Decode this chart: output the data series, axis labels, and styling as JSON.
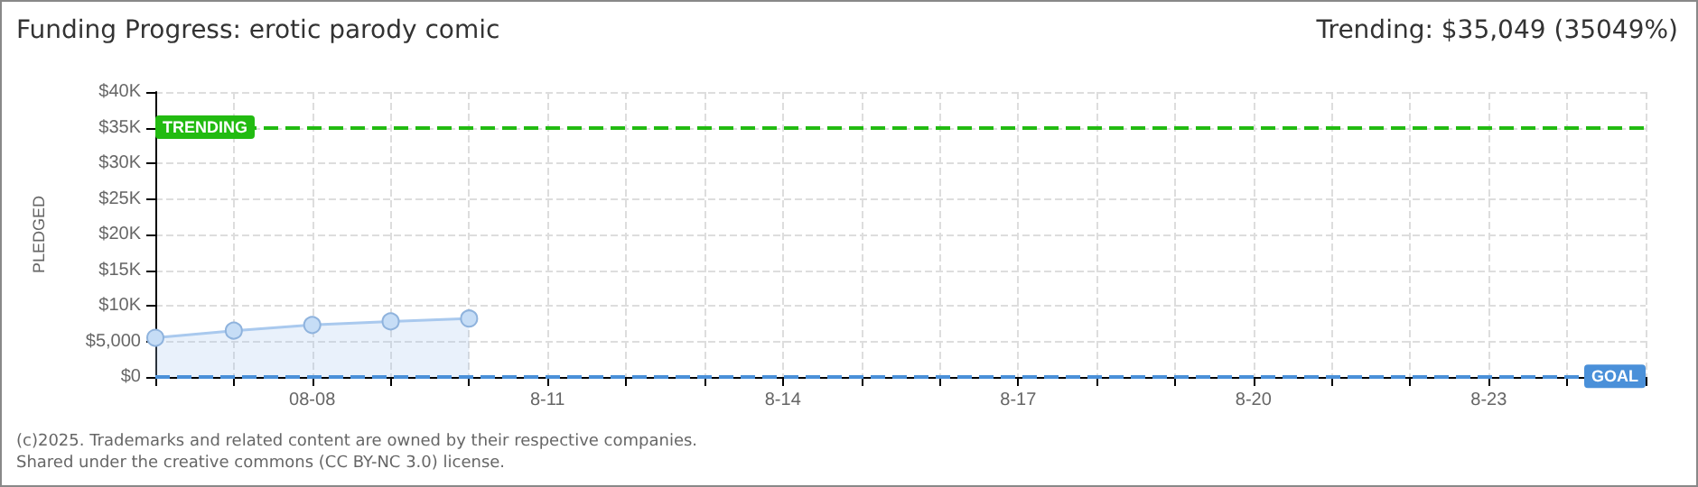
{
  "chart_data": {
    "type": "area",
    "title": "Funding Progress: erotic parody comic",
    "subtitle": "Trending:  $35,049 (35049%)",
    "ylabel": "PLEDGED",
    "x": [
      "--08-06",
      "--08-07",
      "--08-08",
      "--08-09",
      "--08-10"
    ],
    "series": [
      {
        "color": "#a9c9ee",
        "values": [
          5500,
          6500,
          7300,
          7800,
          8200
        ]
      }
    ],
    "xlim": [
      "--08-06",
      "--08-25"
    ],
    "xticks": [
      {
        "value": "--08-06",
        "label": null
      },
      {
        "value": "--08-07",
        "label": null
      },
      {
        "value": "--08-08",
        "label": "08-08"
      },
      {
        "value": "--08-09",
        "label": null
      },
      {
        "value": "--08-10",
        "label": null
      },
      {
        "value": "--08-11",
        "label": "8-11"
      },
      {
        "value": "--08-12",
        "label": null
      },
      {
        "value": "--08-13",
        "label": null
      },
      {
        "value": "--08-14",
        "label": "8-14"
      },
      {
        "value": "--08-15",
        "label": null
      },
      {
        "value": "--08-16",
        "label": null
      },
      {
        "value": "--08-17",
        "label": "8-17"
      },
      {
        "value": "--08-18",
        "label": null
      },
      {
        "value": "--08-19",
        "label": null
      },
      {
        "value": "--08-20",
        "label": "8-20"
      },
      {
        "value": "--08-21",
        "label": null
      },
      {
        "value": "--08-22",
        "label": null
      },
      {
        "value": "--08-23",
        "label": "8-23"
      },
      {
        "value": "--08-24",
        "label": null
      },
      {
        "value": "--08-25",
        "label": null
      }
    ],
    "ylim": [
      0,
      40000
    ],
    "yticks": [
      {
        "value": 0,
        "label": "$0"
      },
      {
        "value": 5000,
        "label": "$5,000"
      },
      {
        "value": 10000,
        "label": "$10K"
      },
      {
        "value": 15000,
        "label": "$15K"
      },
      {
        "value": 20000,
        "label": "$20K"
      },
      {
        "value": 25000,
        "label": "$25K"
      },
      {
        "value": 30000,
        "label": "$30K"
      },
      {
        "value": 35000,
        "label": "$35K"
      },
      {
        "value": 40000,
        "label": "$40K"
      }
    ],
    "ref_lines": [
      {
        "axis": "y",
        "value": 35049,
        "label": "TRENDING",
        "color": "#22bb11",
        "line_style": "dashed"
      },
      {
        "axis": "y",
        "value": 100,
        "label": "GOAL",
        "color": "#4a90d9",
        "line_style": "dashed"
      }
    ],
    "grid": true,
    "marker": "circle",
    "annotations": [
      "(c)2025. Trademarks and related content are owned by their respective companies.",
      "Shared under the creative commons (CC BY-NC 3.0) license."
    ]
  }
}
